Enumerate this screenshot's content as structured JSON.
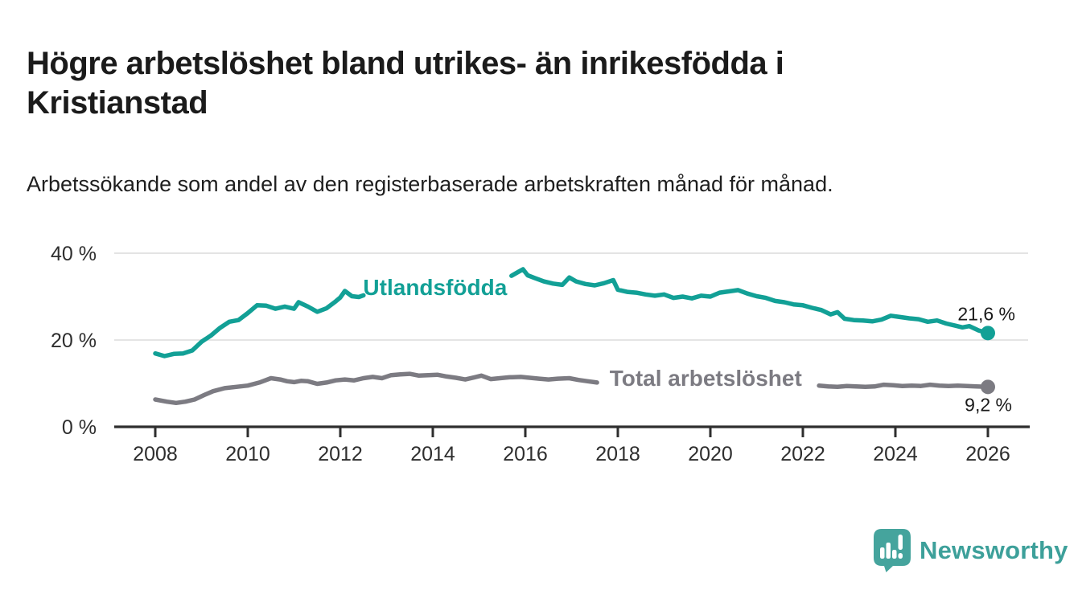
{
  "page": {
    "background": "#ffffff",
    "headline": "Högre arbetslöshet bland utrikes- än inrikesfödda i Kristianstad",
    "description": "Arbetssökande som andel av den registerbaserade arbetskraften månad för månad.",
    "branding": {
      "name": "Newsworthy",
      "color": "#3da09a",
      "icon": "bar-chart-speech-bubble-icon"
    }
  },
  "chart_data": {
    "type": "line",
    "unit": "%",
    "grid": true,
    "x_axis": {
      "range": [
        2007.1,
        2027.0
      ],
      "ticks": [
        {
          "value": 2008,
          "label": "2008"
        },
        {
          "value": 2010,
          "label": "2010"
        },
        {
          "value": 2012,
          "label": "2012"
        },
        {
          "value": 2014,
          "label": "2014"
        },
        {
          "value": 2016,
          "label": "2016"
        },
        {
          "value": 2018,
          "label": "2018"
        },
        {
          "value": 2020,
          "label": "2020"
        },
        {
          "value": 2022,
          "label": "2022"
        },
        {
          "value": 2024,
          "label": "2024"
        },
        {
          "value": 2026,
          "label": "2026"
        }
      ]
    },
    "y_axis": {
      "range": [
        0,
        42
      ],
      "ticks": [
        {
          "value": 0,
          "label": "0 %"
        },
        {
          "value": 20,
          "label": "20 %"
        },
        {
          "value": 40,
          "label": "40 %"
        }
      ]
    },
    "series": [
      {
        "name": "Utlandsfödda",
        "color": "#12a096",
        "end_value": 21.6,
        "end_value_label": "21,6 %",
        "label_at": {
          "year": 2014.05,
          "value": 32.2
        },
        "segments": [
          [
            [
              2008.0,
              16.9
            ],
            [
              2008.2,
              16.3
            ],
            [
              2008.4,
              16.8
            ],
            [
              2008.6,
              16.9
            ],
            [
              2008.8,
              17.6
            ],
            [
              2009.0,
              19.6
            ],
            [
              2009.2,
              21.0
            ],
            [
              2009.4,
              22.8
            ],
            [
              2009.6,
              24.2
            ],
            [
              2009.8,
              24.6
            ],
            [
              2010.0,
              26.2
            ],
            [
              2010.2,
              28.0
            ],
            [
              2010.4,
              27.9
            ],
            [
              2010.6,
              27.2
            ],
            [
              2010.8,
              27.7
            ],
            [
              2011.0,
              27.2
            ],
            [
              2011.1,
              28.7
            ],
            [
              2011.3,
              27.7
            ],
            [
              2011.5,
              26.5
            ],
            [
              2011.7,
              27.3
            ],
            [
              2011.9,
              28.9
            ],
            [
              2012.0,
              29.8
            ],
            [
              2012.1,
              31.3
            ],
            [
              2012.25,
              30.1
            ],
            [
              2012.4,
              29.9
            ],
            [
              2012.5,
              30.3
            ]
          ],
          [
            [
              2015.7,
              34.8
            ],
            [
              2015.85,
              35.7
            ],
            [
              2015.95,
              36.3
            ],
            [
              2016.05,
              34.9
            ],
            [
              2016.2,
              34.3
            ],
            [
              2016.4,
              33.5
            ],
            [
              2016.6,
              33.0
            ],
            [
              2016.8,
              32.7
            ],
            [
              2016.95,
              34.4
            ],
            [
              2017.1,
              33.5
            ],
            [
              2017.3,
              32.9
            ],
            [
              2017.5,
              32.6
            ],
            [
              2017.7,
              33.1
            ],
            [
              2017.9,
              33.8
            ],
            [
              2018.0,
              31.6
            ],
            [
              2018.2,
              31.1
            ],
            [
              2018.4,
              30.9
            ],
            [
              2018.6,
              30.5
            ],
            [
              2018.8,
              30.2
            ],
            [
              2019.0,
              30.5
            ],
            [
              2019.2,
              29.7
            ],
            [
              2019.4,
              30.0
            ],
            [
              2019.6,
              29.6
            ],
            [
              2019.8,
              30.2
            ],
            [
              2020.0,
              30.0
            ],
            [
              2020.2,
              30.9
            ],
            [
              2020.4,
              31.2
            ],
            [
              2020.6,
              31.5
            ],
            [
              2020.8,
              30.7
            ],
            [
              2021.0,
              30.1
            ],
            [
              2021.2,
              29.7
            ],
            [
              2021.4,
              29.0
            ],
            [
              2021.6,
              28.7
            ],
            [
              2021.8,
              28.2
            ],
            [
              2022.0,
              28.0
            ],
            [
              2022.2,
              27.4
            ],
            [
              2022.4,
              26.9
            ],
            [
              2022.6,
              25.9
            ],
            [
              2022.75,
              26.4
            ],
            [
              2022.9,
              24.9
            ],
            [
              2023.1,
              24.6
            ],
            [
              2023.3,
              24.5
            ],
            [
              2023.5,
              24.3
            ],
            [
              2023.7,
              24.7
            ],
            [
              2023.9,
              25.6
            ],
            [
              2024.1,
              25.3
            ],
            [
              2024.3,
              25.0
            ],
            [
              2024.5,
              24.8
            ],
            [
              2024.7,
              24.2
            ],
            [
              2024.9,
              24.5
            ],
            [
              2025.1,
              23.8
            ],
            [
              2025.3,
              23.3
            ],
            [
              2025.45,
              22.9
            ],
            [
              2025.6,
              23.2
            ],
            [
              2025.8,
              22.2
            ],
            [
              2026.0,
              21.6
            ]
          ]
        ]
      },
      {
        "name": "Total arbetslöshet",
        "color": "#7c7b82",
        "end_value": 9.2,
        "end_value_label": "9,2 %",
        "label_at": {
          "year": 2019.9,
          "value": 11.3
        },
        "segments": [
          [
            [
              2008.0,
              6.3
            ],
            [
              2008.25,
              5.8
            ],
            [
              2008.45,
              5.5
            ],
            [
              2008.65,
              5.8
            ],
            [
              2008.85,
              6.3
            ],
            [
              2009.05,
              7.3
            ],
            [
              2009.25,
              8.2
            ],
            [
              2009.5,
              8.9
            ],
            [
              2009.75,
              9.2
            ],
            [
              2010.0,
              9.5
            ],
            [
              2010.25,
              10.2
            ],
            [
              2010.5,
              11.2
            ],
            [
              2010.7,
              10.9
            ],
            [
              2010.85,
              10.5
            ],
            [
              2011.0,
              10.3
            ],
            [
              2011.15,
              10.6
            ],
            [
              2011.3,
              10.5
            ],
            [
              2011.5,
              9.9
            ],
            [
              2011.7,
              10.2
            ],
            [
              2011.9,
              10.7
            ],
            [
              2012.1,
              10.9
            ],
            [
              2012.3,
              10.7
            ],
            [
              2012.5,
              11.2
            ],
            [
              2012.7,
              11.5
            ],
            [
              2012.9,
              11.2
            ],
            [
              2013.1,
              11.9
            ],
            [
              2013.3,
              12.1
            ],
            [
              2013.5,
              12.2
            ],
            [
              2013.7,
              11.8
            ],
            [
              2013.9,
              11.9
            ],
            [
              2014.1,
              12.0
            ],
            [
              2014.3,
              11.6
            ],
            [
              2014.5,
              11.3
            ],
            [
              2014.7,
              10.9
            ],
            [
              2014.9,
              11.4
            ],
            [
              2015.05,
              11.8
            ],
            [
              2015.25,
              11.0
            ],
            [
              2015.45,
              11.2
            ],
            [
              2015.65,
              11.4
            ],
            [
              2015.9,
              11.5
            ],
            [
              2016.1,
              11.3
            ],
            [
              2016.3,
              11.1
            ],
            [
              2016.5,
              10.9
            ],
            [
              2016.7,
              11.1
            ],
            [
              2016.95,
              11.2
            ],
            [
              2017.15,
              10.8
            ],
            [
              2017.35,
              10.5
            ],
            [
              2017.55,
              10.2
            ]
          ],
          [
            [
              2022.35,
              9.5
            ],
            [
              2022.55,
              9.3
            ],
            [
              2022.75,
              9.2
            ],
            [
              2022.95,
              9.4
            ],
            [
              2023.15,
              9.3
            ],
            [
              2023.35,
              9.2
            ],
            [
              2023.55,
              9.3
            ],
            [
              2023.75,
              9.7
            ],
            [
              2023.95,
              9.6
            ],
            [
              2024.15,
              9.4
            ],
            [
              2024.35,
              9.5
            ],
            [
              2024.55,
              9.4
            ],
            [
              2024.75,
              9.7
            ],
            [
              2024.95,
              9.5
            ],
            [
              2025.15,
              9.4
            ],
            [
              2025.35,
              9.5
            ],
            [
              2025.55,
              9.4
            ],
            [
              2025.75,
              9.3
            ],
            [
              2026.0,
              9.2
            ]
          ]
        ]
      }
    ]
  }
}
